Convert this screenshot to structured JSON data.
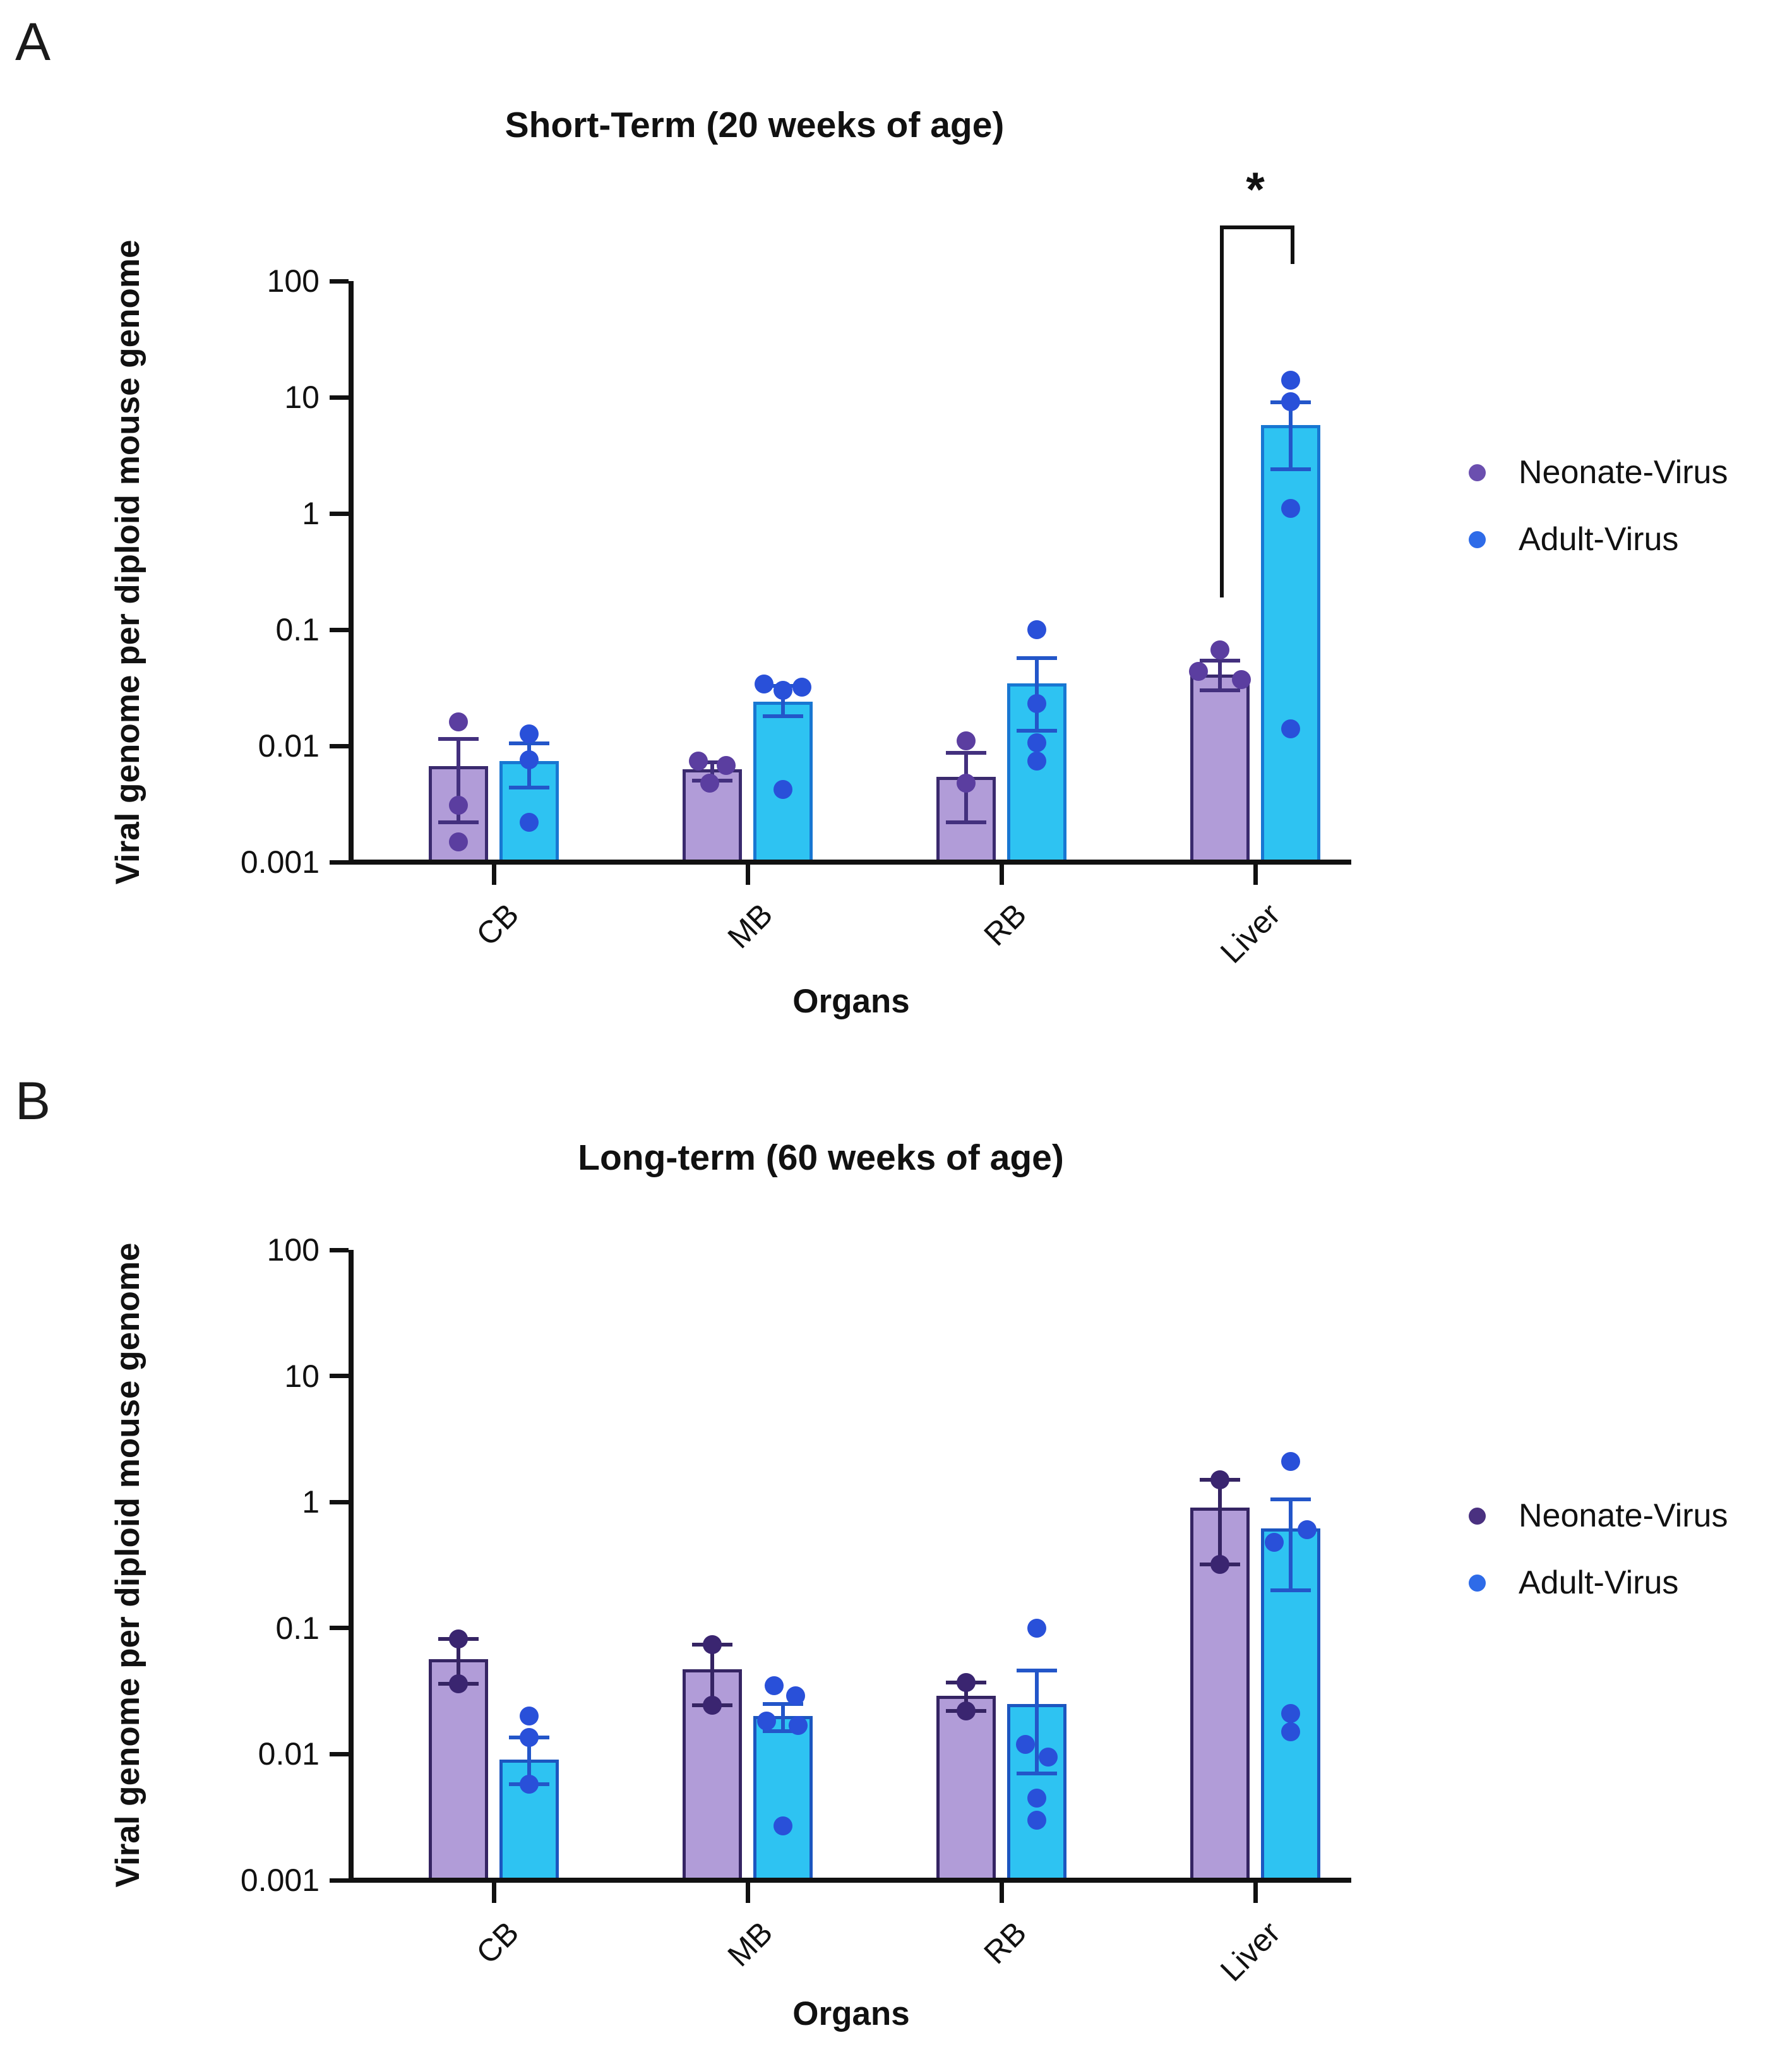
{
  "figure": {
    "background": "#ffffff"
  },
  "chart_data": [
    {
      "type": "bar",
      "panel_letter": "A",
      "title": "Short-Term (20 weeks of age)",
      "xlabel": "Organs",
      "ylabel": "Viral genome per diploid mouse genome",
      "scale": "log",
      "grid": false,
      "ylim": [
        0.001,
        100
      ],
      "yticks": [
        100,
        10,
        1,
        0.1,
        0.01,
        0.001
      ],
      "ytick_labels": [
        "100",
        "10",
        "1",
        "0.1",
        "0.01",
        "0.001"
      ],
      "categories": [
        "CB",
        "MB",
        "RB",
        "Liver"
      ],
      "legend_position": "right",
      "series": [
        {
          "name": "Neonate-Virus",
          "bar_fill": "#B19CD8",
          "bar_border": "#3A2A6E",
          "point_color": "#5B3EA0",
          "error_color": "#43307E",
          "legend_dot": "#6B4FAF"
        },
        {
          "name": "Adult-Virus",
          "bar_fill": "#2EC3F2",
          "bar_border": "#1877D2",
          "point_color": "#2950D9",
          "error_color": "#2356C9",
          "legend_dot": "#2E6BE8"
        }
      ],
      "values": [
        {
          "category": "CB",
          "series": [
            {
              "bar": 0.0067,
              "err": [
                0.0022,
                0.0115
              ],
              "points": [
                {
                  "v": 0.016,
                  "dx": 0
                },
                {
                  "v": 0.0031,
                  "dx": 0
                },
                {
                  "v": 0.0015,
                  "dx": 0
                }
              ]
            },
            {
              "bar": 0.0074,
              "err": [
                0.0044,
                0.0105
              ],
              "points": [
                {
                  "v": 0.0127,
                  "dx": 0
                },
                {
                  "v": 0.0076,
                  "dx": 0
                },
                {
                  "v": 0.0022,
                  "dx": 0
                }
              ]
            }
          ]
        },
        {
          "category": "MB",
          "series": [
            {
              "bar": 0.0063,
              "err": [
                0.005,
                0.0072
              ],
              "points": [
                {
                  "v": 0.0074,
                  "dx": -22
                },
                {
                  "v": 0.0068,
                  "dx": 22
                },
                {
                  "v": 0.0048,
                  "dx": -4
                }
              ]
            },
            {
              "bar": 0.024,
              "err": [
                0.018,
                0.033
              ],
              "points": [
                {
                  "v": 0.034,
                  "dx": -30
                },
                {
                  "v": 0.032,
                  "dx": 30
                },
                {
                  "v": 0.03,
                  "dx": 0
                },
                {
                  "v": 0.0042,
                  "dx": 0
                }
              ]
            }
          ]
        },
        {
          "category": "RB",
          "series": [
            {
              "bar": 0.0054,
              "err": [
                0.0022,
                0.0087
              ],
              "points": [
                {
                  "v": 0.011,
                  "dx": 0
                },
                {
                  "v": 0.0048,
                  "dx": 0
                }
              ]
            },
            {
              "bar": 0.0345,
              "err": [
                0.0135,
                0.057
              ],
              "points": [
                {
                  "v": 0.1,
                  "dx": 0
                },
                {
                  "v": 0.023,
                  "dx": 0
                },
                {
                  "v": 0.0107,
                  "dx": 0
                },
                {
                  "v": 0.0074,
                  "dx": 0
                }
              ]
            }
          ]
        },
        {
          "category": "Liver",
          "series": [
            {
              "bar": 0.041,
              "err": [
                0.03,
                0.054
              ],
              "points": [
                {
                  "v": 0.067,
                  "dx": 0
                },
                {
                  "v": 0.044,
                  "dx": -34
                },
                {
                  "v": 0.037,
                  "dx": 34
                }
              ]
            },
            {
              "bar": 5.8,
              "err": [
                2.4,
                9.0
              ],
              "points": [
                {
                  "v": 14,
                  "dx": 0
                },
                {
                  "v": 9.2,
                  "dx": 0
                },
                {
                  "v": 1.1,
                  "dx": 0
                },
                {
                  "v": 0.014,
                  "dx": 0
                }
              ]
            }
          ]
        }
      ],
      "significance": {
        "label": "*",
        "category": "Liver",
        "top_value": 300,
        "left_drop_to": 0.19,
        "right_drop_to": 140
      }
    },
    {
      "type": "bar",
      "panel_letter": "B",
      "title": "Long-term (60 weeks of age)",
      "xlabel": "Organs",
      "ylabel": "Viral genome per diploid mouse genome",
      "scale": "log",
      "grid": false,
      "ylim": [
        0.001,
        100
      ],
      "yticks": [
        100,
        10,
        1,
        0.1,
        0.01,
        0.001
      ],
      "ytick_labels": [
        "100",
        "10",
        "1",
        "0.1",
        "0.01",
        "0.001"
      ],
      "categories": [
        "CB",
        "MB",
        "RB",
        "Liver"
      ],
      "legend_position": "right",
      "series": [
        {
          "name": "Neonate-Virus",
          "bar_fill": "#B19CD8",
          "bar_border": "#352463",
          "point_color": "#3A2570",
          "error_color": "#352463",
          "legend_dot": "#4A3180"
        },
        {
          "name": "Adult-Virus",
          "bar_fill": "#2EC3F2",
          "bar_border": "#1C56C0",
          "point_color": "#2950D9",
          "error_color": "#2356C9",
          "legend_dot": "#2E6BE8"
        }
      ],
      "values": [
        {
          "category": "CB",
          "series": [
            {
              "bar": 0.057,
              "err": [
                0.036,
                0.082
              ],
              "points": [
                {
                  "v": 0.082,
                  "dx": 0
                },
                {
                  "v": 0.036,
                  "dx": 0
                }
              ]
            },
            {
              "bar": 0.0091,
              "err": [
                0.0058,
                0.0135
              ],
              "points": [
                {
                  "v": 0.02,
                  "dx": 0
                },
                {
                  "v": 0.0135,
                  "dx": 0
                },
                {
                  "v": 0.0058,
                  "dx": 0
                }
              ]
            }
          ]
        },
        {
          "category": "MB",
          "series": [
            {
              "bar": 0.047,
              "err": [
                0.0245,
                0.074
              ],
              "points": [
                {
                  "v": 0.074,
                  "dx": 0
                },
                {
                  "v": 0.0245,
                  "dx": 0
                }
              ]
            },
            {
              "bar": 0.02,
              "err": [
                0.0152,
                0.025
              ],
              "points": [
                {
                  "v": 0.035,
                  "dx": -14
                },
                {
                  "v": 0.029,
                  "dx": 20
                },
                {
                  "v": 0.0182,
                  "dx": -26
                },
                {
                  "v": 0.0168,
                  "dx": 24
                },
                {
                  "v": 0.0027,
                  "dx": 0
                }
              ]
            }
          ]
        },
        {
          "category": "RB",
          "series": [
            {
              "bar": 0.029,
              "err": [
                0.022,
                0.037
              ],
              "points": [
                {
                  "v": 0.037,
                  "dx": 0
                },
                {
                  "v": 0.022,
                  "dx": 0
                }
              ]
            },
            {
              "bar": 0.025,
              "err": [
                0.007,
                0.046
              ],
              "points": [
                {
                  "v": 0.1,
                  "dx": 0
                },
                {
                  "v": 0.012,
                  "dx": -18
                },
                {
                  "v": 0.0095,
                  "dx": 18
                },
                {
                  "v": 0.0045,
                  "dx": 0
                },
                {
                  "v": 0.003,
                  "dx": 0
                }
              ]
            }
          ]
        },
        {
          "category": "Liver",
          "series": [
            {
              "bar": 0.9,
              "err": [
                0.32,
                1.5
              ],
              "points": [
                {
                  "v": 1.5,
                  "dx": 0
                },
                {
                  "v": 0.32,
                  "dx": 0
                }
              ]
            },
            {
              "bar": 0.62,
              "err": [
                0.2,
                1.05
              ],
              "points": [
                {
                  "v": 2.1,
                  "dx": 0
                },
                {
                  "v": 0.6,
                  "dx": 26
                },
                {
                  "v": 0.48,
                  "dx": -26
                },
                {
                  "v": 0.021,
                  "dx": 0
                },
                {
                  "v": 0.015,
                  "dx": 0
                }
              ]
            }
          ]
        }
      ],
      "significance": null
    }
  ]
}
